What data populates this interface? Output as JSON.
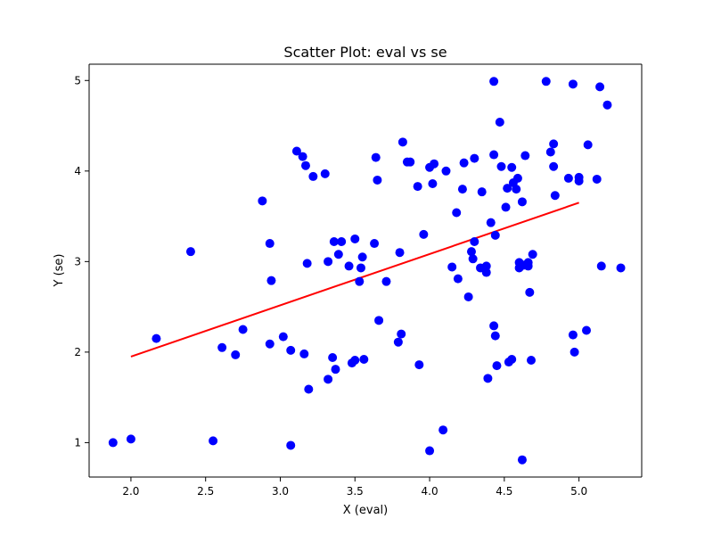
{
  "chart_data": {
    "type": "scatter",
    "title": "Scatter Plot: eval vs se",
    "xlabel": "X (eval)",
    "ylabel": "Y (se)",
    "xlim": [
      1.72,
      5.42
    ],
    "ylim": [
      0.62,
      5.18
    ],
    "xticks": [
      2.0,
      2.5,
      3.0,
      3.5,
      4.0,
      4.5,
      5.0
    ],
    "xtick_labels": [
      "2.0",
      "2.5",
      "3.0",
      "3.5",
      "4.0",
      "4.5",
      "5.0"
    ],
    "yticks": [
      1,
      2,
      3,
      4,
      5
    ],
    "ytick_labels": [
      "1",
      "2",
      "3",
      "4",
      "5"
    ],
    "grid": false,
    "point_color": "#0000ff",
    "line_color": "#ff0000",
    "regression_line": {
      "x": [
        2.0,
        5.0
      ],
      "y": [
        1.95,
        3.65
      ]
    },
    "points": [
      {
        "x": 1.88,
        "y": 1.0
      },
      {
        "x": 2.0,
        "y": 1.04
      },
      {
        "x": 2.17,
        "y": 2.15
      },
      {
        "x": 2.4,
        "y": 3.11
      },
      {
        "x": 2.55,
        "y": 1.02
      },
      {
        "x": 2.61,
        "y": 2.05
      },
      {
        "x": 2.7,
        "y": 1.97
      },
      {
        "x": 2.75,
        "y": 2.25
      },
      {
        "x": 2.88,
        "y": 3.67
      },
      {
        "x": 2.93,
        "y": 3.2
      },
      {
        "x": 2.93,
        "y": 2.09
      },
      {
        "x": 2.94,
        "y": 2.79
      },
      {
        "x": 3.02,
        "y": 2.17
      },
      {
        "x": 3.07,
        "y": 2.02
      },
      {
        "x": 3.07,
        "y": 0.97
      },
      {
        "x": 3.11,
        "y": 4.22
      },
      {
        "x": 3.15,
        "y": 4.16
      },
      {
        "x": 3.16,
        "y": 1.98
      },
      {
        "x": 3.17,
        "y": 4.06
      },
      {
        "x": 3.18,
        "y": 2.98
      },
      {
        "x": 3.19,
        "y": 1.59
      },
      {
        "x": 3.22,
        "y": 3.94
      },
      {
        "x": 3.3,
        "y": 3.97
      },
      {
        "x": 3.32,
        "y": 3.0
      },
      {
        "x": 3.32,
        "y": 1.7
      },
      {
        "x": 3.35,
        "y": 1.94
      },
      {
        "x": 3.36,
        "y": 3.22
      },
      {
        "x": 3.37,
        "y": 1.81
      },
      {
        "x": 3.39,
        "y": 3.08
      },
      {
        "x": 3.41,
        "y": 3.22
      },
      {
        "x": 3.46,
        "y": 2.95
      },
      {
        "x": 3.48,
        "y": 1.88
      },
      {
        "x": 3.5,
        "y": 3.25
      },
      {
        "x": 3.5,
        "y": 1.91
      },
      {
        "x": 3.53,
        "y": 2.78
      },
      {
        "x": 3.54,
        "y": 2.93
      },
      {
        "x": 3.55,
        "y": 3.05
      },
      {
        "x": 3.56,
        "y": 1.92
      },
      {
        "x": 3.63,
        "y": 3.2
      },
      {
        "x": 3.64,
        "y": 4.15
      },
      {
        "x": 3.65,
        "y": 3.9
      },
      {
        "x": 3.66,
        "y": 2.35
      },
      {
        "x": 3.71,
        "y": 2.78
      },
      {
        "x": 3.79,
        "y": 2.11
      },
      {
        "x": 3.8,
        "y": 3.1
      },
      {
        "x": 3.81,
        "y": 2.2
      },
      {
        "x": 3.82,
        "y": 4.32
      },
      {
        "x": 3.85,
        "y": 4.1
      },
      {
        "x": 3.87,
        "y": 4.1
      },
      {
        "x": 3.92,
        "y": 3.83
      },
      {
        "x": 3.93,
        "y": 1.86
      },
      {
        "x": 3.96,
        "y": 3.3
      },
      {
        "x": 4.0,
        "y": 4.04
      },
      {
        "x": 4.0,
        "y": 0.91
      },
      {
        "x": 4.02,
        "y": 3.86
      },
      {
        "x": 4.03,
        "y": 4.08
      },
      {
        "x": 4.09,
        "y": 1.14
      },
      {
        "x": 4.11,
        "y": 4.0
      },
      {
        "x": 4.15,
        "y": 2.94
      },
      {
        "x": 4.18,
        "y": 3.54
      },
      {
        "x": 4.19,
        "y": 2.81
      },
      {
        "x": 4.22,
        "y": 3.8
      },
      {
        "x": 4.23,
        "y": 4.09
      },
      {
        "x": 4.26,
        "y": 2.61
      },
      {
        "x": 4.28,
        "y": 3.11
      },
      {
        "x": 4.29,
        "y": 3.03
      },
      {
        "x": 4.3,
        "y": 3.22
      },
      {
        "x": 4.3,
        "y": 4.14
      },
      {
        "x": 4.34,
        "y": 2.93
      },
      {
        "x": 4.35,
        "y": 3.77
      },
      {
        "x": 4.38,
        "y": 2.88
      },
      {
        "x": 4.38,
        "y": 2.95
      },
      {
        "x": 4.39,
        "y": 1.71
      },
      {
        "x": 4.41,
        "y": 3.43
      },
      {
        "x": 4.43,
        "y": 4.99
      },
      {
        "x": 4.43,
        "y": 4.18
      },
      {
        "x": 4.43,
        "y": 2.29
      },
      {
        "x": 4.44,
        "y": 3.29
      },
      {
        "x": 4.44,
        "y": 2.18
      },
      {
        "x": 4.45,
        "y": 1.85
      },
      {
        "x": 4.47,
        "y": 4.54
      },
      {
        "x": 4.48,
        "y": 4.05
      },
      {
        "x": 4.51,
        "y": 3.6
      },
      {
        "x": 4.52,
        "y": 3.81
      },
      {
        "x": 4.53,
        "y": 1.89
      },
      {
        "x": 4.55,
        "y": 4.04
      },
      {
        "x": 4.55,
        "y": 1.92
      },
      {
        "x": 4.56,
        "y": 3.87
      },
      {
        "x": 4.58,
        "y": 3.8
      },
      {
        "x": 4.59,
        "y": 3.92
      },
      {
        "x": 4.6,
        "y": 2.99
      },
      {
        "x": 4.6,
        "y": 2.93
      },
      {
        "x": 4.62,
        "y": 3.66
      },
      {
        "x": 4.62,
        "y": 0.81
      },
      {
        "x": 4.63,
        "y": 2.96
      },
      {
        "x": 4.64,
        "y": 4.17
      },
      {
        "x": 4.66,
        "y": 2.95
      },
      {
        "x": 4.66,
        "y": 2.99
      },
      {
        "x": 4.67,
        "y": 2.66
      },
      {
        "x": 4.68,
        "y": 1.91
      },
      {
        "x": 4.69,
        "y": 3.08
      },
      {
        "x": 4.78,
        "y": 4.99
      },
      {
        "x": 4.81,
        "y": 4.21
      },
      {
        "x": 4.83,
        "y": 4.3
      },
      {
        "x": 4.83,
        "y": 4.05
      },
      {
        "x": 4.84,
        "y": 3.73
      },
      {
        "x": 4.93,
        "y": 3.92
      },
      {
        "x": 4.96,
        "y": 4.96
      },
      {
        "x": 4.96,
        "y": 2.19
      },
      {
        "x": 4.97,
        "y": 2.0
      },
      {
        "x": 5.0,
        "y": 3.93
      },
      {
        "x": 5.0,
        "y": 3.89
      },
      {
        "x": 5.05,
        "y": 2.24
      },
      {
        "x": 5.06,
        "y": 4.29
      },
      {
        "x": 5.12,
        "y": 3.91
      },
      {
        "x": 5.14,
        "y": 4.93
      },
      {
        "x": 5.15,
        "y": 2.95
      },
      {
        "x": 5.19,
        "y": 4.73
      },
      {
        "x": 5.28,
        "y": 2.93
      }
    ]
  }
}
